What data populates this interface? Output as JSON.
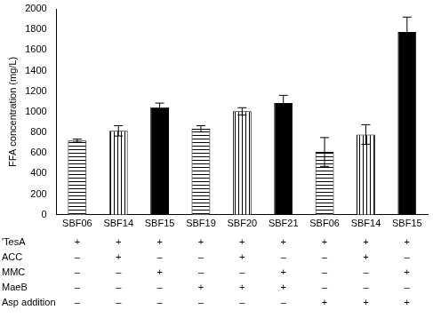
{
  "chart_data": {
    "type": "bar",
    "y_label": "FFA concentration (mg/L)",
    "categories": [
      "SBF06",
      "SBF14",
      "SBF15",
      "SBF19",
      "SBF20",
      "SBF21",
      "SBF06",
      "SBF14",
      "SBF15"
    ],
    "values": [
      720,
      815,
      1045,
      835,
      1005,
      1085,
      610,
      780,
      1775
    ],
    "errors": [
      15,
      50,
      40,
      30,
      35,
      75,
      140,
      95,
      145
    ],
    "color": "#000000",
    "ylim": [
      0,
      2000
    ],
    "yticks": [
      0,
      200,
      400,
      600,
      800,
      1000,
      1200,
      1400,
      1600,
      1800,
      2000
    ],
    "grid": false,
    "table": {
      "rows": [
        {
          "label": "'TesA",
          "marks": [
            "+",
            "+",
            "+",
            "+",
            "+",
            "+",
            "+",
            "+",
            "+"
          ]
        },
        {
          "label": "ACC",
          "marks": [
            "–",
            "+",
            "–",
            "–",
            "+",
            "–",
            "–",
            "+",
            "–"
          ]
        },
        {
          "label": "MMC",
          "marks": [
            "–",
            "–",
            "+",
            "–",
            "–",
            "+",
            "–",
            "–",
            "+"
          ]
        },
        {
          "label": "MaeB",
          "marks": [
            "–",
            "–",
            "–",
            "+",
            "+",
            "+",
            "–",
            "–",
            "–"
          ]
        },
        {
          "label": "Asp addition",
          "marks": [
            "–",
            "–",
            "–",
            "–",
            "–",
            "–",
            "+",
            "+",
            "+"
          ]
        }
      ]
    }
  }
}
